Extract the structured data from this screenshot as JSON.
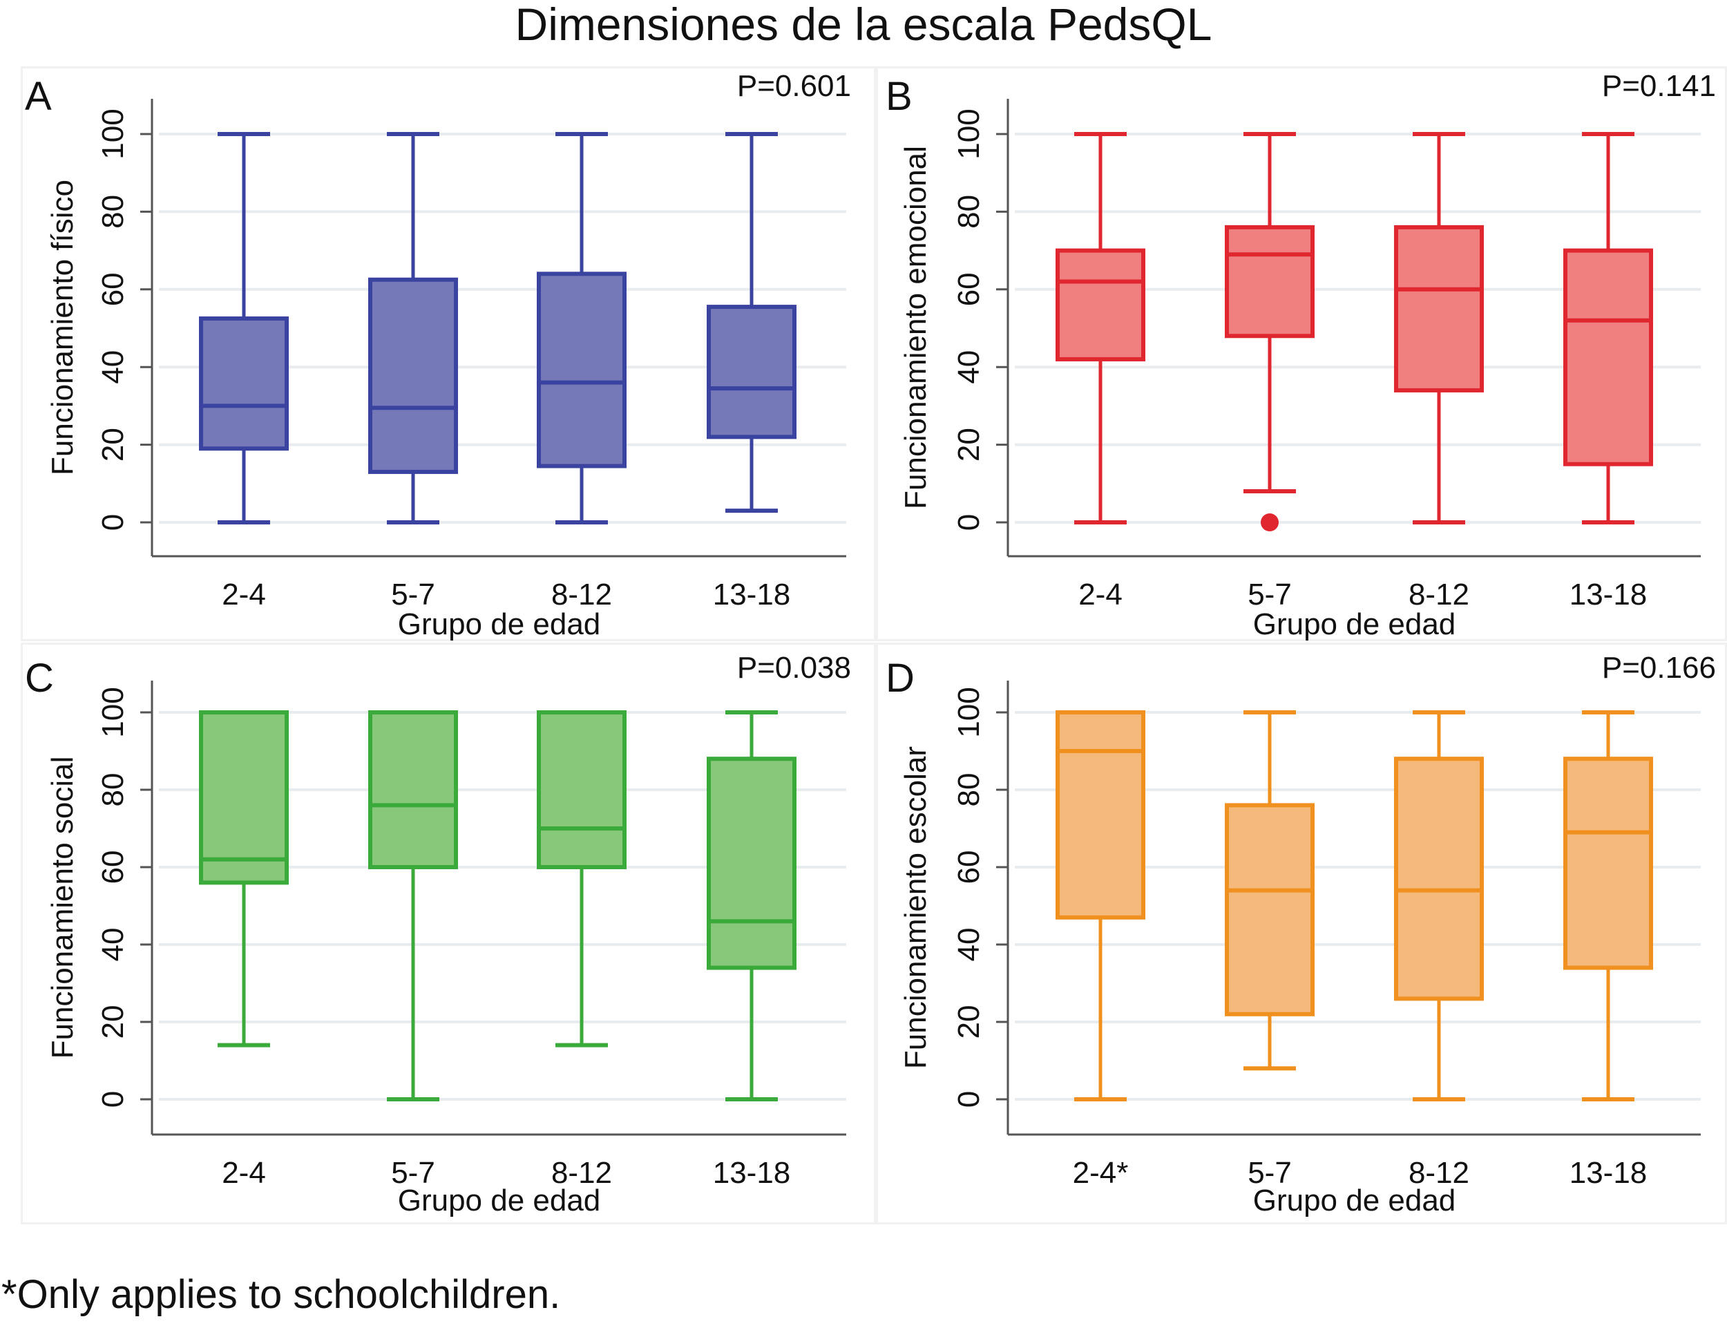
{
  "figure": {
    "title": "Dimensiones de la escala PedsQL",
    "footnote": "*Only applies to schoolchildren."
  },
  "chart_data": [
    {
      "type": "boxplot",
      "panel": "A",
      "p_value": "P=0.601",
      "ylabel": "Funcionamiento físico",
      "xlabel": "Grupo de edad",
      "categories": [
        "2-4",
        "5-7",
        "8-12",
        "13-18"
      ],
      "yticks": [
        0,
        20,
        40,
        60,
        80,
        100
      ],
      "ylim": [
        -9,
        109
      ],
      "grid": true,
      "color": "#3a44a0",
      "fill": "#7679b8",
      "boxes": [
        {
          "min": 0,
          "q1": 19,
          "median": 30,
          "q3": 52.5,
          "max": 100,
          "outliers": []
        },
        {
          "min": 0,
          "q1": 13,
          "median": 29.5,
          "q3": 62.5,
          "max": 100,
          "outliers": []
        },
        {
          "min": 0,
          "q1": 14.5,
          "median": 36,
          "q3": 64,
          "max": 100,
          "outliers": []
        },
        {
          "min": 3,
          "q1": 22,
          "median": 34.5,
          "q3": 55.5,
          "max": 100,
          "outliers": []
        }
      ]
    },
    {
      "type": "boxplot",
      "panel": "B",
      "p_value": "P=0.141",
      "ylabel": "Funcionamiento emocional",
      "xlabel": "Grupo de edad",
      "categories": [
        "2-4",
        "5-7",
        "8-12",
        "13-18"
      ],
      "yticks": [
        0,
        20,
        40,
        60,
        80,
        100
      ],
      "ylim": [
        -9,
        109
      ],
      "grid": true,
      "color": "#e0262e",
      "fill": "#f08080",
      "boxes": [
        {
          "min": 0,
          "q1": 42,
          "median": 62,
          "q3": 70,
          "max": 100,
          "outliers": []
        },
        {
          "min": 8,
          "q1": 48,
          "median": 69,
          "q3": 76,
          "max": 100,
          "outliers": [
            0
          ]
        },
        {
          "min": 0,
          "q1": 34,
          "median": 60,
          "q3": 76,
          "max": 100,
          "outliers": []
        },
        {
          "min": 0,
          "q1": 15,
          "median": 52,
          "q3": 70,
          "max": 100,
          "outliers": []
        }
      ]
    },
    {
      "type": "boxplot",
      "panel": "C",
      "p_value": "P=0.038",
      "ylabel": "Funcionamiento social",
      "xlabel": "Grupo de edad",
      "categories": [
        "2-4",
        "5-7",
        "8-12",
        "13-18"
      ],
      "yticks": [
        0,
        20,
        40,
        60,
        80,
        100
      ],
      "ylim": [
        -9,
        109
      ],
      "grid": true,
      "color": "#3aaa3a",
      "fill": "#88c87a",
      "boxes": [
        {
          "min": 14,
          "q1": 56,
          "median": 62,
          "q3": 100,
          "max": 100,
          "outliers": []
        },
        {
          "min": 0,
          "q1": 60,
          "median": 76,
          "q3": 100,
          "max": 100,
          "outliers": []
        },
        {
          "min": 14,
          "q1": 60,
          "median": 70,
          "q3": 100,
          "max": 100,
          "outliers": []
        },
        {
          "min": 0,
          "q1": 34,
          "median": 46,
          "q3": 88,
          "max": 100,
          "outliers": []
        }
      ]
    },
    {
      "type": "boxplot",
      "panel": "D",
      "p_value": "P=0.166",
      "ylabel": "Funcionamiento escolar",
      "xlabel": "Grupo de edad",
      "categories": [
        "2-4*",
        "5-7",
        "8-12",
        "13-18"
      ],
      "yticks": [
        0,
        20,
        40,
        60,
        80,
        100
      ],
      "ylim": [
        -9,
        109
      ],
      "grid": true,
      "color": "#f0901e",
      "fill": "#f6b97c",
      "boxes": [
        {
          "min": 0,
          "q1": 47,
          "median": 90,
          "q3": 100,
          "max": 100,
          "outliers": []
        },
        {
          "min": 8,
          "q1": 22,
          "median": 54,
          "q3": 76,
          "max": 100,
          "outliers": []
        },
        {
          "min": 0,
          "q1": 26,
          "median": 54,
          "q3": 88,
          "max": 100,
          "outliers": []
        },
        {
          "min": 0,
          "q1": 34,
          "median": 69,
          "q3": 88,
          "max": 100,
          "outliers": []
        }
      ]
    }
  ]
}
